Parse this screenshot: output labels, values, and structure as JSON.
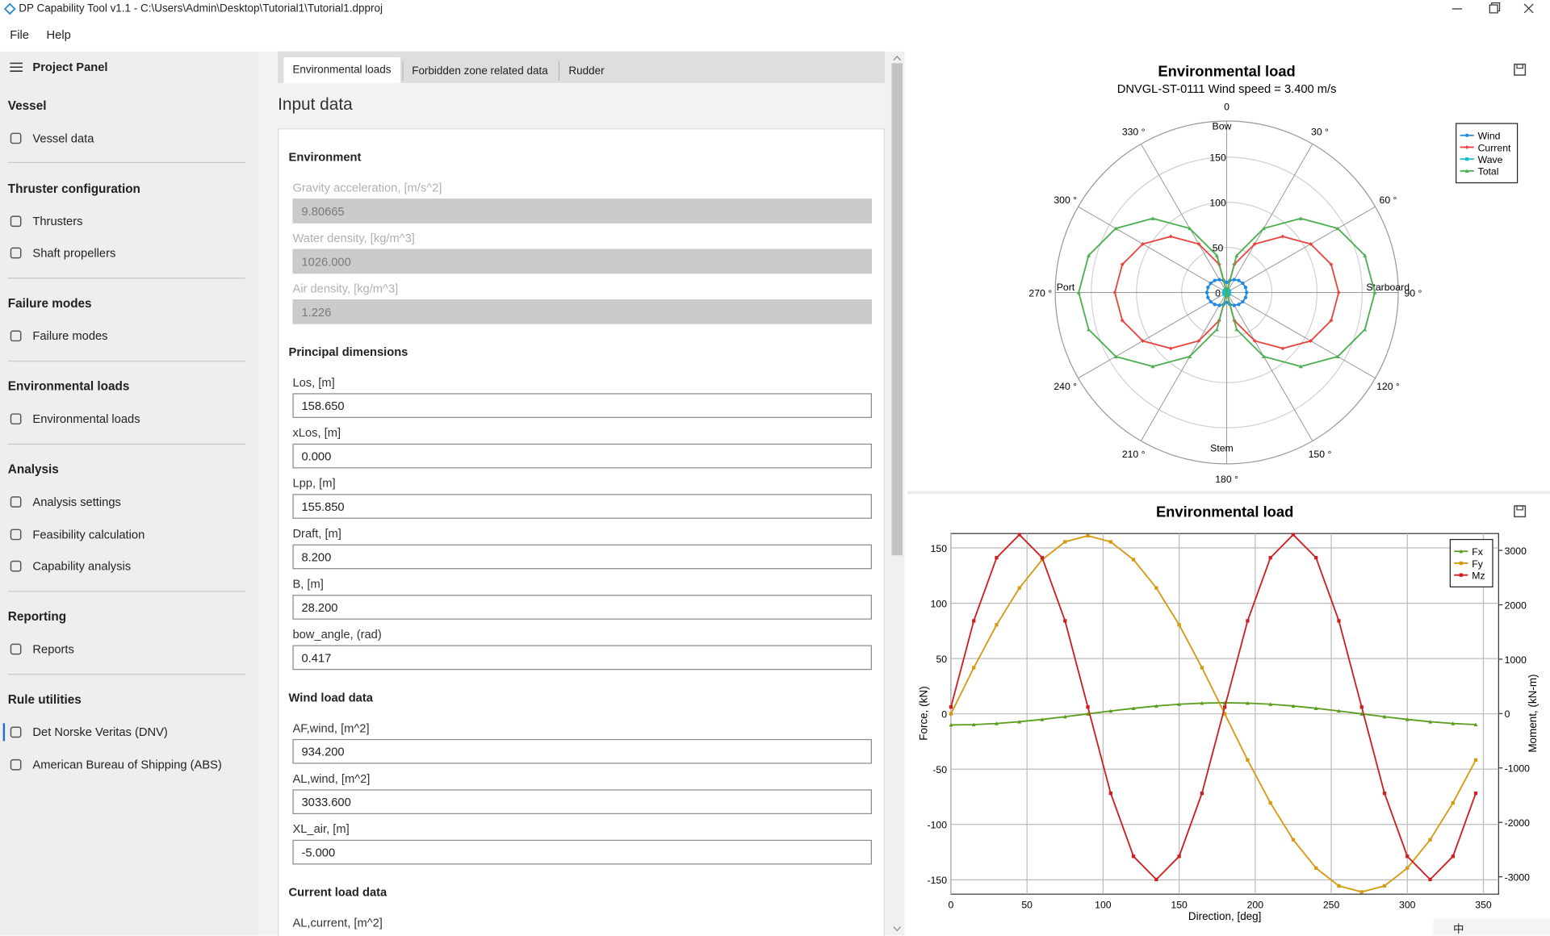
{
  "window": {
    "title": "DP Capability Tool v1.1 - C:\\Users\\Admin\\Desktop\\Tutorial1\\Tutorial1.dpproj"
  },
  "menu": [
    "File",
    "Help"
  ],
  "sidebar": {
    "title": "Project Panel",
    "selected_section": 6,
    "selected_item": 0,
    "sections": [
      {
        "heading": "Vessel",
        "items": [
          "Vessel data"
        ]
      },
      {
        "heading": "Thruster configuration",
        "items": [
          "Thrusters",
          "Shaft propellers"
        ]
      },
      {
        "heading": "Failure modes",
        "items": [
          "Failure modes"
        ]
      },
      {
        "heading": "Environmental loads",
        "items": [
          "Environmental loads"
        ]
      },
      {
        "heading": "Analysis",
        "items": [
          "Analysis settings",
          "Feasibility calculation",
          "Capability analysis"
        ]
      },
      {
        "heading": "Reporting",
        "items": [
          "Reports"
        ]
      },
      {
        "heading": "Rule utilities",
        "items": [
          "Det Norske Veritas (DNV)",
          "American Bureau of Shipping (ABS)"
        ]
      }
    ]
  },
  "tabs": {
    "items": [
      "Environmental loads",
      "Forbidden zone related data",
      "Rudder"
    ],
    "active": 0
  },
  "form": {
    "title": "Input data",
    "groups": [
      {
        "heading": "Environment",
        "fields": [
          {
            "label": "Gravity acceleration, [m/s^2]",
            "value": "9.80665",
            "disabled": true
          },
          {
            "label": "Water density, [kg/m^3]",
            "value": "1026.000",
            "disabled": true
          },
          {
            "label": "Air density, [kg/m^3]",
            "value": "1.226",
            "disabled": true
          }
        ]
      },
      {
        "heading": "Principal dimensions",
        "fields": [
          {
            "label": "Los, [m]",
            "value": "158.650",
            "disabled": false
          },
          {
            "label": "xLos, [m]",
            "value": "0.000",
            "disabled": false
          },
          {
            "label": "Lpp, [m]",
            "value": "155.850",
            "disabled": false
          },
          {
            "label": "Draft, [m]",
            "value": "8.200",
            "disabled": false
          },
          {
            "label": "B, [m]",
            "value": "28.200",
            "disabled": false
          },
          {
            "label": "bow_angle, (rad)",
            "value": "0.417",
            "disabled": false
          }
        ]
      },
      {
        "heading": "Wind load data",
        "fields": [
          {
            "label": "AF,wind, [m^2]",
            "value": "934.200",
            "disabled": false
          },
          {
            "label": "AL,wind, [m^2]",
            "value": "3033.600",
            "disabled": false
          },
          {
            "label": "XL_air, [m]",
            "value": "-5.000",
            "disabled": false
          }
        ]
      },
      {
        "heading": "Current load data",
        "fields": [
          {
            "label": "AL,current, [m^2]",
            "disabled": false
          }
        ]
      }
    ]
  },
  "tray": {
    "ime": "中"
  },
  "chart_data": [
    {
      "type": "polar",
      "title": "Environmental load",
      "subtitle": "DNVGL-ST-0111 Wind speed = 3.400 m/s",
      "direction_labels": [
        "Bow",
        "Starboard",
        "Stem",
        "Port"
      ],
      "theta": [
        0,
        15,
        30,
        45,
        60,
        75,
        90,
        105,
        120,
        135,
        150,
        165,
        180,
        195,
        210,
        225,
        240,
        255,
        270,
        285,
        300,
        315,
        330,
        345
      ],
      "rlim": [
        0,
        190
      ],
      "rticks": [
        0,
        50,
        100,
        150
      ],
      "thetaticks": [
        0,
        {
          "value": 30,
          "label": "30 °"
        },
        {
          "value": 60,
          "label": "60 °"
        },
        {
          "value": 90,
          "label": "90 °"
        },
        {
          "value": 120,
          "label": "120 °"
        },
        {
          "value": 150,
          "label": "150 °"
        },
        {
          "value": 180,
          "label": "180 °"
        },
        {
          "value": 210,
          "label": "210 °"
        },
        {
          "value": 240,
          "label": "240 °"
        },
        {
          "value": 270,
          "label": "270 °"
        },
        {
          "value": 300,
          "label": "300 °"
        },
        {
          "value": 330,
          "label": "330 °"
        }
      ],
      "legend": "upper right",
      "grid": true,
      "series": [
        {
          "name": "Wind",
          "color": "#1e88e5",
          "marker": "circle",
          "values": [
            11,
            13.8,
            16.5,
            18.8,
            20.5,
            21.6,
            22,
            21.6,
            20.5,
            18.8,
            16.5,
            13.8,
            11,
            13.8,
            16.5,
            18.8,
            20.5,
            21.6,
            22,
            21.6,
            20.5,
            18.8,
            16.5,
            13.8
          ]
        },
        {
          "name": "Current",
          "color": "#e8453c",
          "marker": "diamond",
          "values": [
            0,
            32.1,
            62,
            87.7,
            107.4,
            119.8,
            124,
            119.8,
            107.4,
            87.7,
            62,
            32.1,
            0,
            32.1,
            62,
            87.7,
            107.4,
            119.8,
            124,
            119.8,
            107.4,
            87.7,
            62,
            32.1
          ]
        },
        {
          "name": "Wave",
          "color": "#17becf",
          "marker": "square",
          "values": [
            3,
            3,
            3,
            3,
            3,
            3,
            3,
            3,
            3,
            3,
            3,
            3,
            3,
            3,
            3,
            3,
            3,
            3,
            3,
            3,
            3,
            3,
            3,
            3
          ]
        },
        {
          "name": "Total",
          "color": "#4caf50",
          "marker": "triangle",
          "values": [
            0,
            42.4,
            82,
            116,
            142,
            158.4,
            164,
            158.4,
            142,
            116,
            82,
            42.4,
            0,
            42.4,
            82,
            116,
            142,
            158.4,
            164,
            158.4,
            142,
            116,
            82,
            42.4
          ]
        }
      ]
    },
    {
      "type": "line",
      "title": "Environmental load",
      "xlabel": "Direction, [deg]",
      "ylabel": "Force, (kN)",
      "y2label": "Moment, (kN-m)",
      "x": [
        0,
        15,
        30,
        45,
        60,
        75,
        90,
        105,
        120,
        135,
        150,
        165,
        180,
        195,
        210,
        225,
        240,
        255,
        270,
        285,
        300,
        315,
        330,
        345
      ],
      "xlim": [
        0,
        360
      ],
      "xticks": [
        0,
        50,
        100,
        150,
        200,
        250,
        300,
        350
      ],
      "ylim": [
        -163,
        163
      ],
      "yticks": [
        -150,
        -100,
        -50,
        0,
        50,
        100,
        150
      ],
      "y2lim": [
        -3320,
        3310
      ],
      "y2ticks": [
        -3000,
        -2000,
        -1000,
        0,
        1000,
        2000,
        3000
      ],
      "legend": "upper right",
      "grid": true,
      "series": [
        {
          "name": "Fx",
          "color": "#5a9e1e",
          "marker": "triangle",
          "values": [
            -10,
            -9.7,
            -8.7,
            -7.1,
            -5,
            -2.6,
            0,
            2.6,
            5,
            7.1,
            8.7,
            9.7,
            10,
            9.7,
            8.7,
            7.1,
            5,
            2.6,
            0,
            -2.6,
            -5,
            -7.1,
            -8.7,
            -9.7
          ]
        },
        {
          "name": "Fy",
          "color": "#d49a12",
          "marker": "square",
          "values": [
            0,
            41.7,
            80.5,
            113.8,
            139.4,
            155.5,
            161,
            155.5,
            139.4,
            113.8,
            80.5,
            41.7,
            0,
            -41.7,
            -80.5,
            -113.8,
            -139.4,
            -155.5,
            -161,
            -155.5,
            -139.4,
            -113.8,
            -80.5,
            -41.7
          ]
        },
        {
          "name": "Mz",
          "color": "#cc1f1f",
          "marker": "square",
          "axis": "y2",
          "values": [
            120,
            1705,
            2865,
            3290,
            2865,
            1705,
            120,
            -1465,
            -2625,
            -3050,
            -2625,
            -1465,
            120,
            1705,
            2865,
            3290,
            2865,
            1705,
            120,
            -1465,
            -2625,
            -3050,
            -2625,
            -1465
          ]
        }
      ]
    }
  ]
}
